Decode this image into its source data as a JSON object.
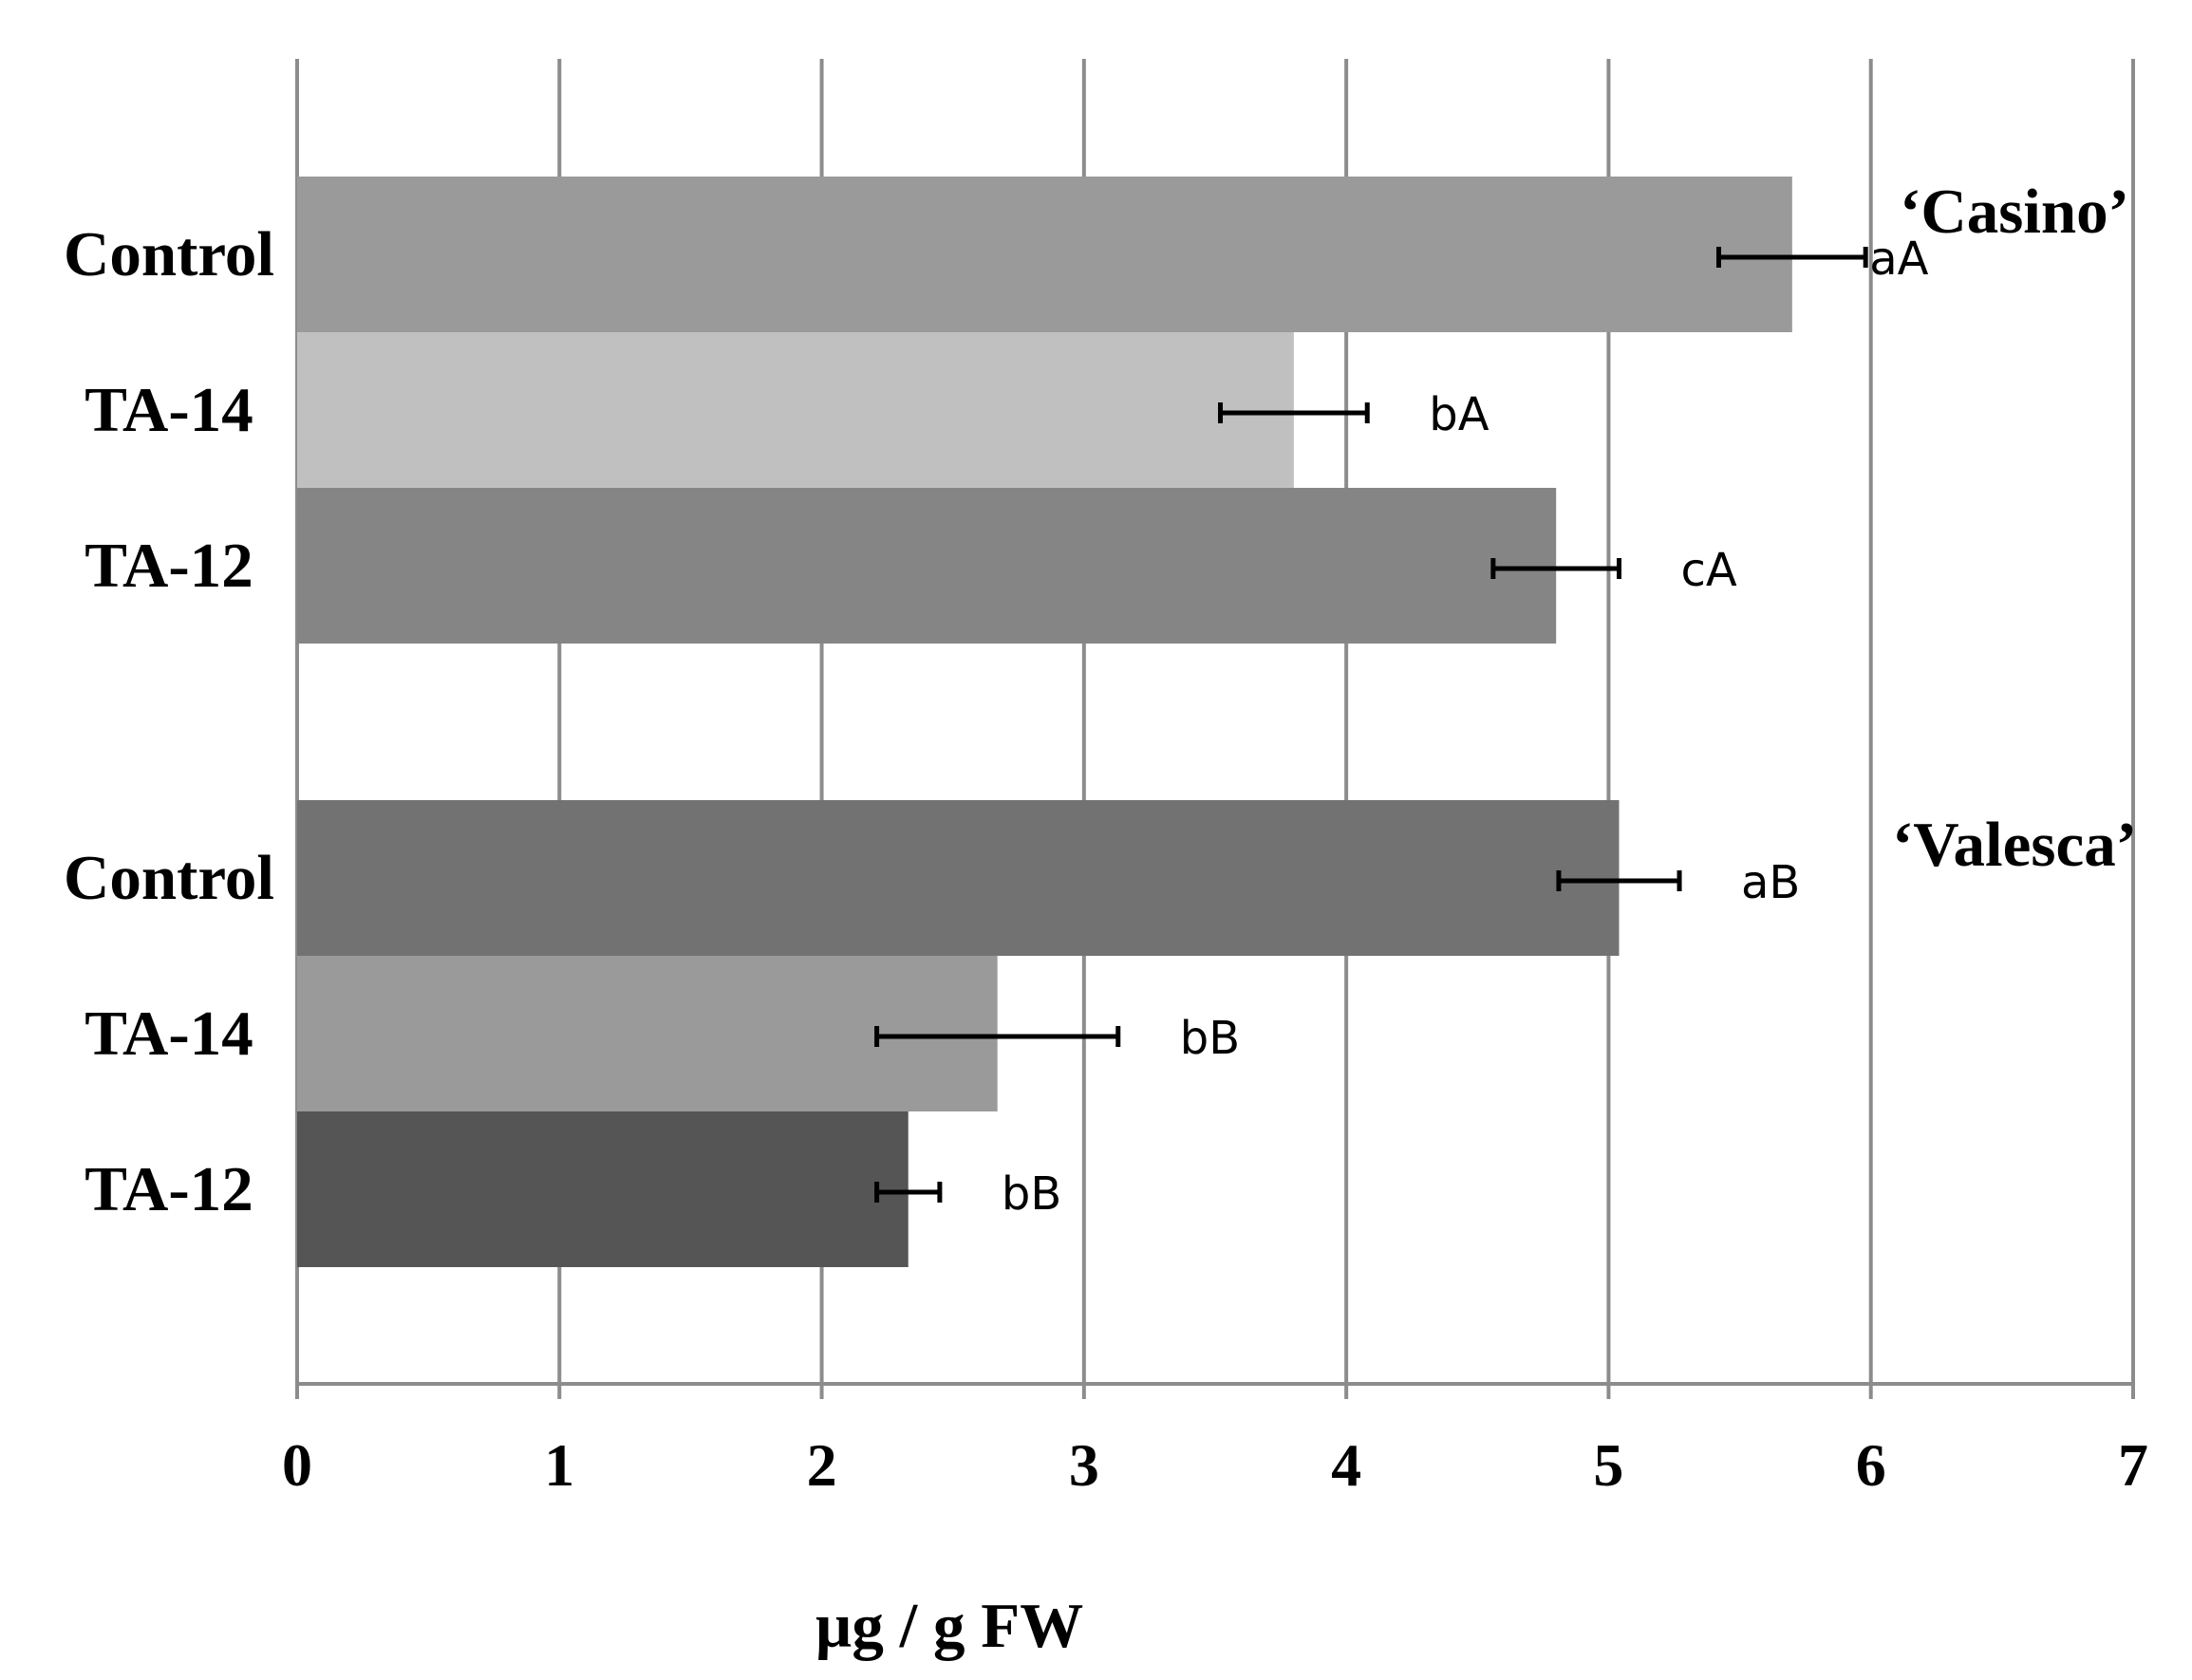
{
  "chart_data": {
    "type": "bar",
    "orientation": "horizontal",
    "xlabel": "µg / g FW",
    "xlim": [
      0,
      7
    ],
    "x_ticks": [
      "0",
      "1",
      "2",
      "3",
      "4",
      "5",
      "6",
      "7"
    ],
    "grid": "vertical",
    "groups": [
      {
        "name": "‘Casino’",
        "bars": [
          {
            "category": "Control",
            "value": 5.7,
            "error": 0.28,
            "label": "aA",
            "color": "#9a9a9a"
          },
          {
            "category": "TA-14",
            "value": 3.8,
            "error": 0.28,
            "label": "bA",
            "color": "#c0c0c0"
          },
          {
            "category": "TA-12",
            "value": 4.8,
            "error": 0.24,
            "label": "cA",
            "color": "#858585"
          }
        ]
      },
      {
        "name": "‘Valesca’",
        "bars": [
          {
            "category": "Control",
            "value": 5.04,
            "error": 0.23,
            "label": "aB",
            "color": "#727272"
          },
          {
            "category": "TA-14",
            "value": 2.67,
            "error": 0.46,
            "label": "bB",
            "color": "#9a9a9a"
          },
          {
            "category": "TA-12",
            "value": 2.33,
            "error": 0.12,
            "label": "bB",
            "color": "#555555"
          }
        ]
      }
    ]
  }
}
